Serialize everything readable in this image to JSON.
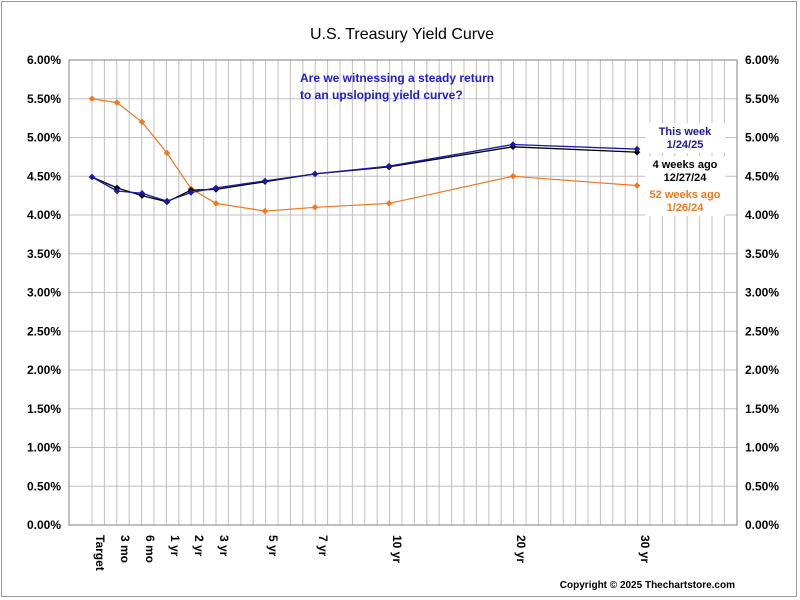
{
  "colors": {
    "this_week": "#1a1aa0",
    "four_weeks": "#000000",
    "fifty_two_weeks": "#f07820",
    "annotation": "#1c1cd8",
    "grid": "#c0c0c0",
    "axis": "#808080"
  },
  "chart_data": {
    "type": "line",
    "title": "U.S. Treasury Yield Curve",
    "xlabel": "",
    "ylabel": "",
    "ylim": [
      0,
      6
    ],
    "y_ticks": [
      "0.00%",
      "0.50%",
      "1.00%",
      "1.50%",
      "2.00%",
      "2.50%",
      "3.00%",
      "3.50%",
      "4.00%",
      "4.50%",
      "5.00%",
      "5.50%",
      "6.00%"
    ],
    "y_tick_values": [
      0,
      0.5,
      1,
      1.5,
      2,
      2.5,
      3,
      3.5,
      4,
      4.5,
      5,
      5.5,
      6
    ],
    "x_scale": "maturity in years (Target plotted before 3 mo)",
    "x_ticks": [
      {
        "label": "Target",
        "x": -0.25
      },
      {
        "label": "3 mo",
        "x": 0.25
      },
      {
        "label": "6 mo",
        "x": 0.5
      },
      {
        "label": "1 yr",
        "x": 1
      },
      {
        "label": "2 yr",
        "x": 2
      },
      {
        "label": "3 yr",
        "x": 3
      },
      {
        "label": "5 yr",
        "x": 5
      },
      {
        "label": "7 yr",
        "x": 7
      },
      {
        "label": "10 yr",
        "x": 10
      },
      {
        "label": "20 yr",
        "x": 20
      },
      {
        "label": "30 yr",
        "x": 30
      }
    ],
    "series": [
      {
        "name": "This week 1/24/25",
        "color_key": "this_week",
        "points": [
          {
            "x": -0.25,
            "y": 4.49
          },
          {
            "x": 0.25,
            "y": 4.31
          },
          {
            "x": 0.5,
            "y": 4.28
          },
          {
            "x": 1,
            "y": 4.18
          },
          {
            "x": 2,
            "y": 4.29
          },
          {
            "x": 3,
            "y": 4.35
          },
          {
            "x": 5,
            "y": 4.44
          },
          {
            "x": 7,
            "y": 4.53
          },
          {
            "x": 10,
            "y": 4.63
          },
          {
            "x": 20,
            "y": 4.91
          },
          {
            "x": 30,
            "y": 4.85
          }
        ]
      },
      {
        "name": "4 weeks ago 12/27/24",
        "color_key": "four_weeks",
        "points": [
          {
            "x": -0.25,
            "y": 4.49
          },
          {
            "x": 0.25,
            "y": 4.35
          },
          {
            "x": 0.5,
            "y": 4.25
          },
          {
            "x": 1,
            "y": 4.17
          },
          {
            "x": 2,
            "y": 4.32
          },
          {
            "x": 3,
            "y": 4.33
          },
          {
            "x": 5,
            "y": 4.43
          },
          {
            "x": 7,
            "y": 4.53
          },
          {
            "x": 10,
            "y": 4.62
          },
          {
            "x": 20,
            "y": 4.88
          },
          {
            "x": 30,
            "y": 4.81
          }
        ]
      },
      {
        "name": "52 weeks ago 1/26/24",
        "color_key": "fifty_two_weeks",
        "points": [
          {
            "x": -0.25,
            "y": 5.5
          },
          {
            "x": 0.25,
            "y": 5.45
          },
          {
            "x": 0.5,
            "y": 5.2
          },
          {
            "x": 1,
            "y": 4.8
          },
          {
            "x": 2,
            "y": 4.34
          },
          {
            "x": 3,
            "y": 4.15
          },
          {
            "x": 5,
            "y": 4.05
          },
          {
            "x": 7,
            "y": 4.1
          },
          {
            "x": 10,
            "y": 4.15
          },
          {
            "x": 20,
            "y": 4.5
          },
          {
            "x": 30,
            "y": 4.38
          }
        ]
      }
    ],
    "grid": true,
    "annotation": [
      "Are we witnessing a steady return",
      "to an upsloping yield curve?"
    ],
    "legend": [
      {
        "lines": [
          "This week",
          "1/24/25"
        ],
        "color_key": "this_week"
      },
      {
        "lines": [
          "4 weeks ago",
          "12/27/24"
        ],
        "color_key": "four_weeks"
      },
      {
        "lines": [
          "52 weeks ago",
          "1/26/24"
        ],
        "color_key": "fifty_two_weeks"
      }
    ],
    "legend_placement": "right"
  },
  "copyright": "Copyright © 2025 Thechartstore.com"
}
